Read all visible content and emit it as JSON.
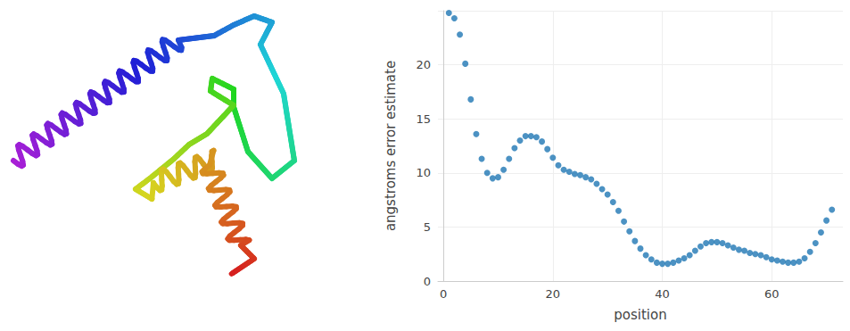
{
  "chart_data": {
    "type": "scatter",
    "x_label": "position",
    "y_label": "angstroms error estimate",
    "x": [
      1,
      2,
      3,
      4,
      5,
      6,
      7,
      8,
      9,
      10,
      11,
      12,
      13,
      14,
      15,
      16,
      17,
      18,
      19,
      20,
      21,
      22,
      23,
      24,
      25,
      26,
      27,
      28,
      29,
      30,
      31,
      32,
      33,
      34,
      35,
      36,
      37,
      38,
      39,
      40,
      41,
      42,
      43,
      44,
      45,
      46,
      47,
      48,
      49,
      50,
      51,
      52,
      53,
      54,
      55,
      56,
      57,
      58,
      59,
      60,
      61,
      62,
      63,
      64,
      65,
      66,
      67,
      68,
      69,
      70,
      71
    ],
    "values": [
      24.8,
      24.3,
      22.8,
      20.1,
      16.8,
      13.6,
      11.3,
      10.0,
      9.5,
      9.6,
      10.3,
      11.3,
      12.3,
      13.0,
      13.4,
      13.4,
      13.3,
      12.9,
      12.2,
      11.4,
      10.7,
      10.3,
      10.1,
      9.9,
      9.8,
      9.6,
      9.4,
      9.0,
      8.5,
      8.0,
      7.3,
      6.5,
      5.5,
      4.6,
      3.7,
      3.0,
      2.4,
      2.0,
      1.7,
      1.6,
      1.6,
      1.7,
      1.9,
      2.1,
      2.4,
      2.8,
      3.2,
      3.5,
      3.6,
      3.6,
      3.5,
      3.3,
      3.1,
      2.9,
      2.8,
      2.6,
      2.5,
      2.4,
      2.2,
      2.0,
      1.9,
      1.8,
      1.7,
      1.7,
      1.8,
      2.1,
      2.7,
      3.5,
      4.5,
      5.6,
      6.6
    ],
    "color": "#1f77b4",
    "marker": "circle",
    "xlim": [
      -1,
      73
    ],
    "xticks": [
      0,
      20,
      40,
      60
    ],
    "ylim": [
      0,
      25
    ],
    "yticks": [
      0,
      5,
      10,
      15,
      20
    ],
    "grid": true
  }
}
